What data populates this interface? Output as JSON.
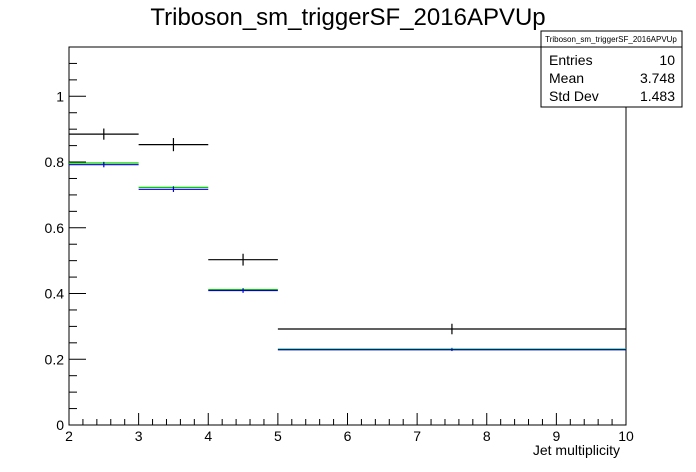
{
  "chart_data": {
    "type": "scatter",
    "title": "Triboson_sm_triggerSF_2016APVUp",
    "xlabel": "Jet multiplicity",
    "ylabel": "",
    "xlim": [
      2,
      10
    ],
    "ylim": [
      0,
      1.15
    ],
    "xticks": [
      2,
      3,
      4,
      5,
      6,
      7,
      8,
      9,
      10
    ],
    "yticks": [
      0,
      0.2,
      0.4,
      0.6,
      0.8,
      1
    ],
    "ytick_labels": [
      "0",
      "0.2",
      "0.4",
      "0.6",
      "0.8",
      "1"
    ],
    "grid": false,
    "stats_box": {
      "title": "Triboson_sm_triggerSF_2016APVUp",
      "rows": [
        {
          "label": "Entries",
          "value": "10"
        },
        {
          "label": "Mean",
          "value": "3.748"
        },
        {
          "label": "Std Dev",
          "value": "1.483"
        }
      ]
    },
    "series": [
      {
        "color": "#000000",
        "points": [
          {
            "x": 2.5,
            "xlo": 2,
            "xhi": 3,
            "y": 0.885,
            "err": 0.017
          },
          {
            "x": 3.5,
            "xlo": 3,
            "xhi": 4,
            "y": 0.853,
            "err": 0.02
          },
          {
            "x": 4.5,
            "xlo": 4,
            "xhi": 5,
            "y": 0.503,
            "err": 0.018
          },
          {
            "x": 7.5,
            "xlo": 5,
            "xhi": 10,
            "y": 0.292,
            "err": 0.016
          }
        ]
      },
      {
        "color": "#00cc00",
        "points": [
          {
            "x": 2.5,
            "xlo": 2,
            "xhi": 3,
            "y": 0.797,
            "err": 0.0
          },
          {
            "x": 3.5,
            "xlo": 3,
            "xhi": 4,
            "y": 0.723,
            "err": 0.0
          },
          {
            "x": 4.5,
            "xlo": 4,
            "xhi": 5,
            "y": 0.412,
            "err": 0.0
          },
          {
            "x": 7.5,
            "xlo": 5,
            "xhi": 10,
            "y": 0.231,
            "err": 0.0
          }
        ]
      },
      {
        "color": "#0000cc",
        "points": [
          {
            "x": 2.5,
            "xlo": 2,
            "xhi": 3,
            "y": 0.792,
            "err": 0.008
          },
          {
            "x": 3.5,
            "xlo": 3,
            "xhi": 4,
            "y": 0.717,
            "err": 0.008
          },
          {
            "x": 4.5,
            "xlo": 4,
            "xhi": 5,
            "y": 0.409,
            "err": 0.007
          },
          {
            "x": 7.5,
            "xlo": 5,
            "xhi": 10,
            "y": 0.229,
            "err": 0.004
          }
        ]
      }
    ]
  }
}
